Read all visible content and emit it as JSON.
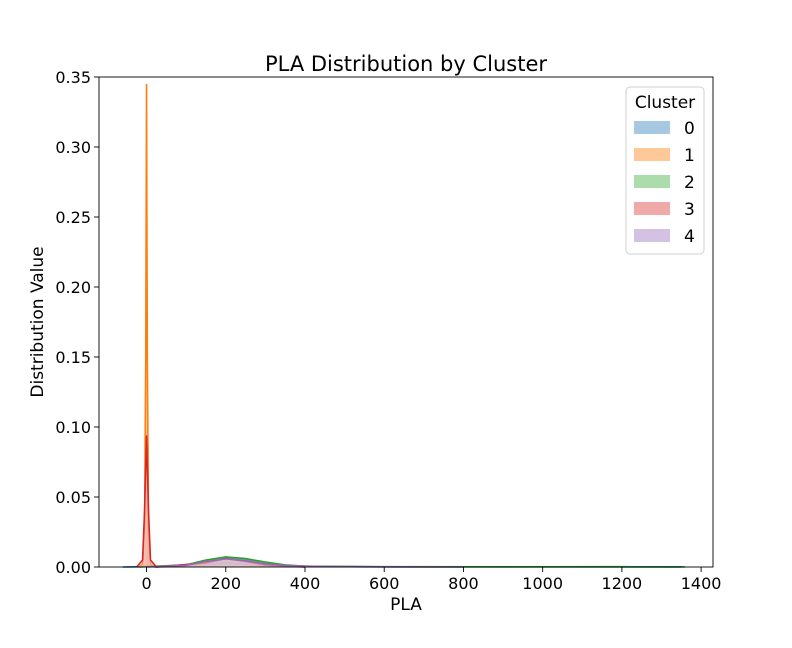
{
  "chart_data": {
    "type": "area",
    "title": "PLA Distribution by Cluster",
    "xlabel": "PLA",
    "ylabel": "Distribution Value",
    "xlim": [
      -120,
      1430
    ],
    "ylim": [
      0,
      0.35
    ],
    "xticks": [
      0,
      200,
      400,
      600,
      800,
      1000,
      1200,
      1400
    ],
    "yticks": [
      0.0,
      0.05,
      0.1,
      0.15,
      0.2,
      0.25,
      0.3,
      0.35
    ],
    "xtick_labels": [
      "0",
      "200",
      "400",
      "600",
      "800",
      "1000",
      "1200",
      "1400"
    ],
    "ytick_labels": [
      "0.00",
      "0.05",
      "0.10",
      "0.15",
      "0.20",
      "0.25",
      "0.30",
      "0.35"
    ],
    "grid": false,
    "legend": {
      "title": "Cluster",
      "placement": "top-right",
      "entries": [
        "0",
        "1",
        "2",
        "3",
        "4"
      ]
    },
    "series": [
      {
        "name": "0",
        "color": "#1f77b4",
        "fill": "#a6c8e0",
        "points": [
          [
            -60,
            0
          ],
          [
            0,
            0.0002
          ],
          [
            50,
            0.0003
          ],
          [
            100,
            0.0015
          ],
          [
            150,
            0.004
          ],
          [
            200,
            0.0068
          ],
          [
            250,
            0.005
          ],
          [
            300,
            0.0025
          ],
          [
            350,
            0.0012
          ],
          [
            400,
            0.0005
          ],
          [
            500,
            0.0002
          ],
          [
            700,
            0.0001
          ],
          [
            1000,
            0.0001
          ],
          [
            1350,
            0
          ]
        ]
      },
      {
        "name": "1",
        "color": "#ff7f0e",
        "fill": "#ffc899",
        "points": [
          [
            -20,
            0
          ],
          [
            -10,
            0.002
          ],
          [
            -5,
            0.03
          ],
          [
            -2,
            0.15
          ],
          [
            0,
            0.345
          ],
          [
            2,
            0.15
          ],
          [
            5,
            0.03
          ],
          [
            10,
            0.002
          ],
          [
            20,
            0
          ],
          [
            100,
            0.0005
          ],
          [
            200,
            0.003
          ],
          [
            300,
            0.0008
          ],
          [
            400,
            0
          ]
        ]
      },
      {
        "name": "2",
        "color": "#2ca02c",
        "fill": "#acdbac",
        "points": [
          [
            -20,
            0
          ],
          [
            0,
            0.0003
          ],
          [
            100,
            0.0015
          ],
          [
            150,
            0.005
          ],
          [
            200,
            0.0072
          ],
          [
            250,
            0.006
          ],
          [
            300,
            0.0035
          ],
          [
            350,
            0.0015
          ],
          [
            400,
            0.0006
          ],
          [
            600,
            0.0002
          ],
          [
            900,
            0.0001
          ],
          [
            1200,
            0.0002
          ],
          [
            1350,
            0.0001
          ],
          [
            1360,
            0
          ]
        ]
      },
      {
        "name": "3",
        "color": "#d62728",
        "fill": "#efa9a9",
        "points": [
          [
            -25,
            0
          ],
          [
            -10,
            0.005
          ],
          [
            -5,
            0.04
          ],
          [
            0,
            0.094
          ],
          [
            5,
            0.04
          ],
          [
            10,
            0.005
          ],
          [
            25,
            0
          ],
          [
            150,
            0.003
          ],
          [
            200,
            0.006
          ],
          [
            250,
            0.004
          ],
          [
            300,
            0.0015
          ],
          [
            400,
            0
          ]
        ]
      },
      {
        "name": "4",
        "color": "#9467bd",
        "fill": "#d4c2e5",
        "points": [
          [
            0,
            0
          ],
          [
            100,
            0.0012
          ],
          [
            150,
            0.004
          ],
          [
            200,
            0.0058
          ],
          [
            250,
            0.0045
          ],
          [
            300,
            0.0022
          ],
          [
            350,
            0.001
          ],
          [
            450,
            0.0003
          ],
          [
            600,
            0.0001
          ],
          [
            800,
            0
          ]
        ]
      }
    ],
    "bars": [
      {
        "series": "1",
        "x0": -3,
        "x1": 1,
        "value": 0.2
      },
      {
        "series": "3",
        "x0": 1,
        "x1": 6,
        "value": 0.087
      }
    ]
  }
}
